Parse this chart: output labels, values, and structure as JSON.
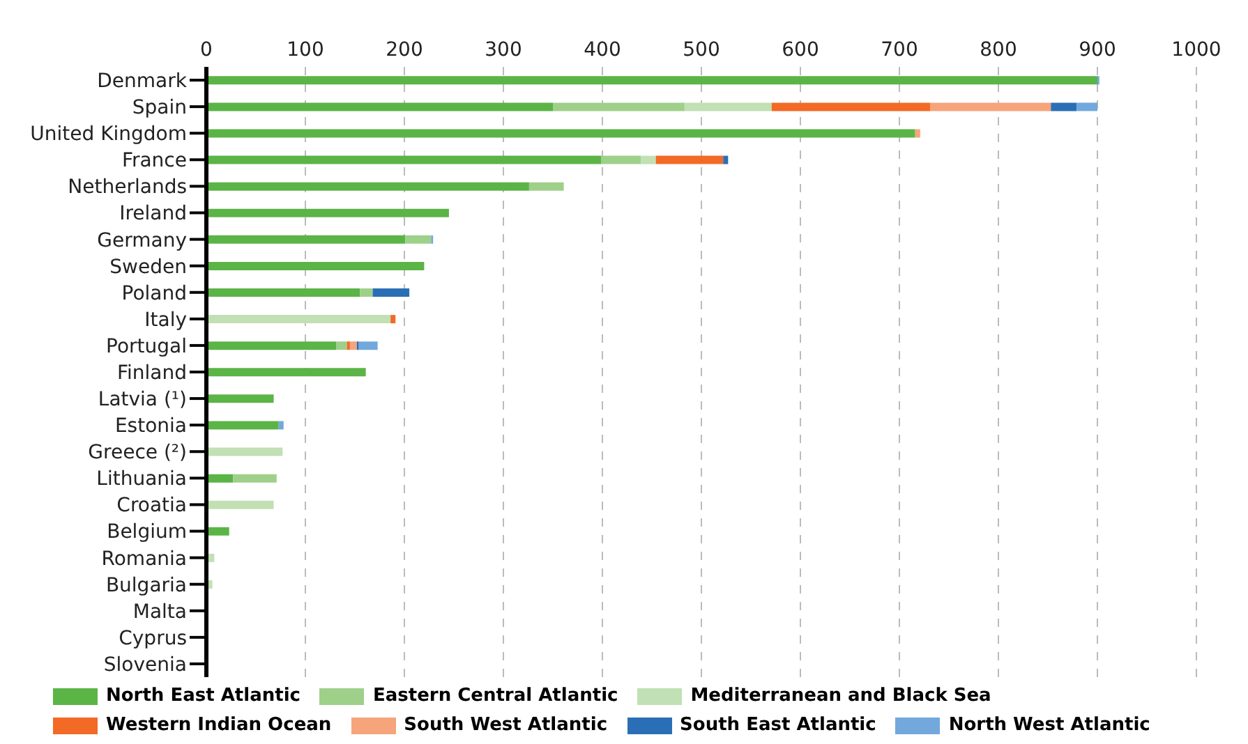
{
  "chart_data": {
    "type": "bar",
    "orientation": "horizontal",
    "stacked": true,
    "categories": [
      "Denmark",
      "Spain",
      "United Kingdom",
      "France",
      "Netherlands",
      "Ireland",
      "Germany",
      "Sweden",
      "Poland",
      "Italy",
      "Portugal",
      "Finland",
      "Latvia (¹)",
      "Estonia",
      "Greece (²)",
      "Lithuania",
      "Croatia",
      "Belgium",
      "Romania",
      "Bulgaria",
      "Malta",
      "Cyprus",
      "Slovenia"
    ],
    "series": [
      {
        "name": "North East Atlantic",
        "color": "#5bb446",
        "values": [
          900,
          350,
          716,
          399,
          326,
          245,
          201,
          220,
          155,
          null,
          131,
          161,
          68,
          73,
          null,
          27,
          null,
          23,
          null,
          null,
          null,
          null,
          null
        ]
      },
      {
        "name": "Eastern Central Atlantic",
        "color": "#9fd08a",
        "values": [
          null,
          133,
          null,
          40,
          35,
          null,
          26,
          null,
          13,
          null,
          11,
          null,
          null,
          null,
          null,
          44,
          null,
          null,
          null,
          null,
          null,
          null,
          null
        ]
      },
      {
        "name": "Mediterranean and Black Sea",
        "color": "#c1e0b4",
        "values": [
          null,
          88,
          null,
          15,
          null,
          null,
          null,
          null,
          null,
          186,
          null,
          null,
          null,
          null,
          77,
          null,
          68,
          null,
          8,
          6,
          null,
          null,
          null
        ]
      },
      {
        "name": "Western Indian Ocean",
        "color": "#f26a25",
        "values": [
          null,
          160,
          null,
          68,
          null,
          null,
          null,
          null,
          null,
          5,
          3,
          null,
          null,
          null,
          null,
          null,
          null,
          null,
          null,
          null,
          null,
          null,
          null
        ]
      },
      {
        "name": "South West Atlantic",
        "color": "#f6a47b",
        "values": [
          null,
          122,
          5,
          null,
          null,
          null,
          null,
          null,
          null,
          null,
          7,
          null,
          null,
          null,
          null,
          null,
          null,
          null,
          null,
          null,
          null,
          null,
          null
        ]
      },
      {
        "name": "South East Atlantic",
        "color": "#2a6fb5",
        "values": [
          null,
          26,
          null,
          5,
          null,
          null,
          null,
          null,
          37,
          null,
          2,
          null,
          null,
          null,
          null,
          null,
          null,
          null,
          null,
          null,
          null,
          null,
          null
        ]
      },
      {
        "name": "North West Atlantic",
        "color": "#72a8dc",
        "values": [
          2,
          21,
          null,
          null,
          null,
          null,
          2,
          null,
          null,
          null,
          19,
          null,
          null,
          5,
          null,
          null,
          null,
          null,
          null,
          null,
          null,
          null,
          null
        ]
      }
    ],
    "xlim": [
      0,
      1000
    ],
    "xticks": [
      0,
      100,
      200,
      300,
      400,
      500,
      600,
      700,
      800,
      900,
      1000
    ],
    "grid": "x",
    "legend": "bottom"
  }
}
